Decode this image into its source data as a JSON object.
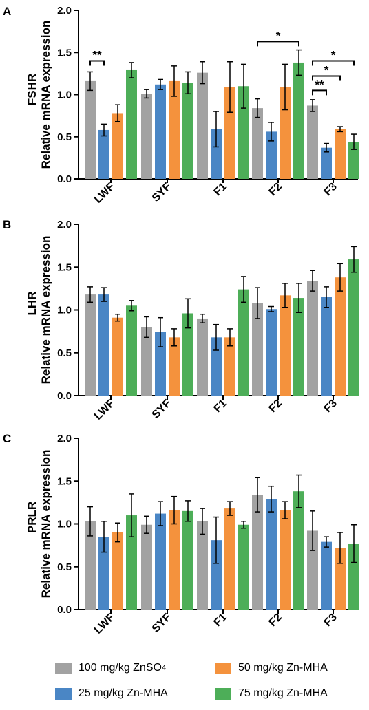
{
  "colors": {
    "zinc_sulfate": "#a2a2a2",
    "zn_mha_25": "#4a86c5",
    "zn_mha_50": "#f4923d",
    "zn_mha_75": "#4dae58"
  },
  "legend": {
    "items": [
      {
        "label": "100 mg/kg ZnSO",
        "sub": "4",
        "color_key": "zinc_sulfate"
      },
      {
        "label": "50 mg/kg Zn-MHA",
        "sub": "",
        "color_key": "zn_mha_50"
      },
      {
        "label": "25 mg/kg Zn-MHA",
        "sub": "",
        "color_key": "zn_mha_25"
      },
      {
        "label": "75 mg/kg Zn-MHA",
        "sub": "",
        "color_key": "zn_mha_75"
      }
    ]
  },
  "chart_data": [
    {
      "type": "bar",
      "panel": "A",
      "ylabel_main": "Relative mRNA expression",
      "ylabel_gene": "FSHR",
      "ylim": [
        0,
        2.0
      ],
      "yticks": [
        "0.0",
        "0.5",
        "1.0",
        "1.5",
        "2.0"
      ],
      "categories": [
        "LWF",
        "SYF",
        "F1",
        "F2",
        "F3"
      ],
      "series": [
        {
          "name": "100 mg/kg ZnSO4",
          "values": [
            1.16,
            1.01,
            1.26,
            0.84,
            0.87
          ],
          "errors": [
            0.11,
            0.05,
            0.13,
            0.11,
            0.07
          ]
        },
        {
          "name": "25 mg/kg Zn-MHA",
          "values": [
            0.58,
            1.12,
            0.59,
            0.56,
            0.37
          ],
          "errors": [
            0.07,
            0.06,
            0.21,
            0.11,
            0.05
          ]
        },
        {
          "name": "50 mg/kg Zn-MHA",
          "values": [
            0.78,
            1.16,
            1.09,
            1.09,
            0.59
          ],
          "errors": [
            0.1,
            0.18,
            0.3,
            0.27,
            0.03
          ]
        },
        {
          "name": "75 mg/kg Zn-MHA",
          "values": [
            1.29,
            1.14,
            1.1,
            1.38,
            0.44
          ],
          "errors": [
            0.09,
            0.13,
            0.26,
            0.15,
            0.09
          ]
        }
      ],
      "brackets": [
        {
          "category": 0,
          "from": 0,
          "to": 1,
          "y": 1.4,
          "label": "**"
        },
        {
          "category": 3,
          "from": 0,
          "to": 3,
          "y": 1.63,
          "label": "*"
        },
        {
          "category": 4,
          "from": 0,
          "to": 1,
          "y": 1.05,
          "label": "**"
        },
        {
          "category": 4,
          "from": 0,
          "to": 2,
          "y": 1.22,
          "label": "*"
        },
        {
          "category": 4,
          "from": 0,
          "to": 3,
          "y": 1.4,
          "label": "*"
        }
      ]
    },
    {
      "type": "bar",
      "panel": "B",
      "ylabel_main": "Relative mRNA expression",
      "ylabel_gene": "LHR",
      "ylim": [
        0,
        2.0
      ],
      "yticks": [
        "0.0",
        "0.5",
        "1.0",
        "1.5",
        "2.0"
      ],
      "categories": [
        "LWF",
        "SYF",
        "F1",
        "F2",
        "F3"
      ],
      "series": [
        {
          "name": "100 mg/kg ZnSO4",
          "values": [
            1.18,
            0.8,
            0.9,
            1.08,
            1.34
          ],
          "errors": [
            0.09,
            0.12,
            0.05,
            0.18,
            0.12
          ]
        },
        {
          "name": "25 mg/kg Zn-MHA",
          "values": [
            1.18,
            0.74,
            0.68,
            1.01,
            1.15
          ],
          "errors": [
            0.08,
            0.17,
            0.15,
            0.03,
            0.12
          ]
        },
        {
          "name": "50 mg/kg Zn-MHA",
          "values": [
            0.91,
            0.68,
            0.68,
            1.17,
            1.38
          ],
          "errors": [
            0.04,
            0.1,
            0.1,
            0.14,
            0.16
          ]
        },
        {
          "name": "75 mg/kg Zn-MHA",
          "values": [
            1.05,
            0.96,
            1.24,
            1.14,
            1.59
          ],
          "errors": [
            0.06,
            0.17,
            0.15,
            0.17,
            0.15
          ]
        }
      ],
      "brackets": []
    },
    {
      "type": "bar",
      "panel": "C",
      "ylabel_main": "Relative mRNA expression",
      "ylabel_gene": "PRLR",
      "ylim": [
        0,
        2.0
      ],
      "yticks": [
        "0.0",
        "0.5",
        "1.0",
        "1.5",
        "2.0"
      ],
      "categories": [
        "LWF",
        "SYF",
        "F1",
        "F2",
        "F3"
      ],
      "series": [
        {
          "name": "100 mg/kg ZnSO4",
          "values": [
            1.03,
            0.99,
            1.03,
            1.34,
            0.92
          ],
          "errors": [
            0.17,
            0.1,
            0.15,
            0.2,
            0.23
          ]
        },
        {
          "name": "25 mg/kg Zn-MHA",
          "values": [
            0.85,
            1.12,
            0.81,
            1.29,
            0.79
          ],
          "errors": [
            0.18,
            0.14,
            0.27,
            0.15,
            0.06
          ]
        },
        {
          "name": "50 mg/kg Zn-MHA",
          "values": [
            0.9,
            1.16,
            1.18,
            1.16,
            0.72
          ],
          "errors": [
            0.11,
            0.16,
            0.08,
            0.1,
            0.18
          ]
        },
        {
          "name": "75 mg/kg Zn-MHA",
          "values": [
            1.1,
            1.15,
            0.99,
            1.38,
            0.77
          ],
          "errors": [
            0.25,
            0.12,
            0.04,
            0.19,
            0.22
          ]
        }
      ],
      "brackets": []
    }
  ]
}
